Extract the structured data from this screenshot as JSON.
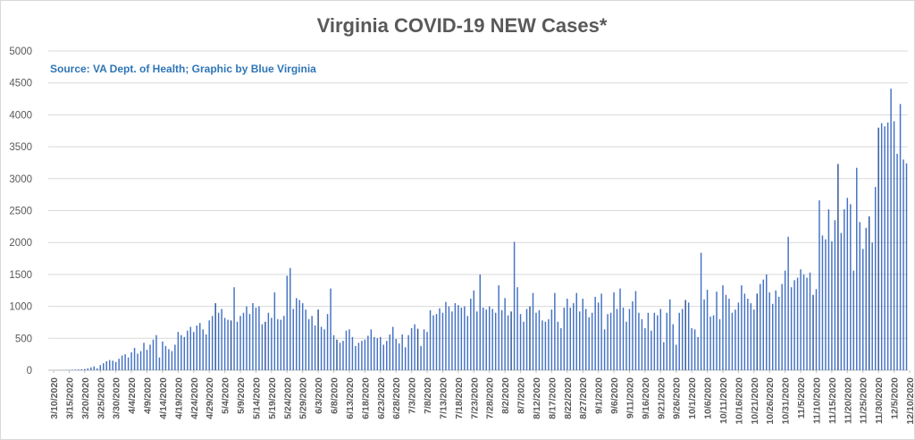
{
  "chart_data": {
    "type": "bar",
    "title": "Virginia COVID-19 NEW Cases*",
    "annotation": "Source: VA Dept. of Health; Graphic by Blue Virginia",
    "xlabel": "",
    "ylabel": "",
    "ylim": [
      0,
      5000
    ],
    "yticks": [
      0,
      500,
      1000,
      1500,
      2000,
      2500,
      3000,
      3500,
      4000,
      4500,
      5000
    ],
    "grid": true,
    "legend": "none",
    "colors": {
      "bar": "#4472c4",
      "bar_dark": "#2f5597",
      "grid": "#d9d9d9",
      "title": "#595959",
      "annotation": "#2e75b6"
    },
    "x_tick_labels": [
      "3/10/2020",
      "3/15/2020",
      "3/20/2020",
      "3/25/2020",
      "3/30/2020",
      "4/4/2020",
      "4/9/2020",
      "4/14/2020",
      "4/19/2020",
      "4/24/2020",
      "4/29/2020",
      "5/4/2020",
      "5/9/2020",
      "5/14/2020",
      "5/19/2020",
      "5/24/2020",
      "5/29/2020",
      "6/3/2020",
      "6/8/2020",
      "6/13/2020",
      "6/18/2020",
      "6/23/2020",
      "6/28/2020",
      "7/3/2020",
      "7/8/2020",
      "7/13/2020",
      "7/18/2020",
      "7/23/2020",
      "7/28/2020",
      "8/2/2020",
      "8/7/2020",
      "8/12/2020",
      "8/17/2020",
      "8/22/2020",
      "8/27/2020",
      "9/1/2020",
      "9/6/2020",
      "9/11/2020",
      "9/16/2020",
      "9/21/2020",
      "9/26/2020",
      "10/1/2020",
      "10/6/2020",
      "10/11/2020",
      "10/16/2020",
      "10/21/2020",
      "10/26/2020",
      "10/31/2020",
      "11/5/2020",
      "11/10/2020",
      "11/15/2020",
      "11/20/2020",
      "11/25/2020",
      "11/30/2020",
      "12/5/2020",
      "12/10/2020"
    ],
    "start_label": "3/10/2020",
    "values": [
      1,
      2,
      3,
      4,
      5,
      6,
      8,
      10,
      12,
      15,
      20,
      30,
      45,
      60,
      30,
      80,
      110,
      140,
      160,
      150,
      130,
      180,
      230,
      250,
      200,
      280,
      350,
      260,
      300,
      430,
      320,
      400,
      480,
      550,
      200,
      450,
      380,
      330,
      300,
      400,
      600,
      550,
      520,
      620,
      680,
      600,
      700,
      740,
      640,
      560,
      780,
      850,
      1050,
      900,
      960,
      820,
      790,
      780,
      1300,
      760,
      850,
      900,
      1000,
      880,
      1050,
      980,
      1000,
      720,
      760,
      900,
      820,
      1220,
      800,
      790,
      850,
      1480,
      1600,
      960,
      1130,
      1100,
      1050,
      950,
      800,
      850,
      700,
      950,
      680,
      640,
      880,
      1280,
      550,
      480,
      430,
      460,
      620,
      640,
      520,
      380,
      430,
      460,
      480,
      540,
      640,
      520,
      500,
      520,
      400,
      460,
      560,
      680,
      490,
      420,
      560,
      360,
      550,
      660,
      720,
      650,
      380,
      640,
      600,
      940,
      860,
      880,
      970,
      900,
      1070,
      1000,
      920,
      1050,
      1020,
      980,
      1000,
      850,
      1120,
      1250,
      920,
      1500,
      980,
      950,
      1000,
      960,
      900,
      1330,
      940,
      1130,
      860,
      920,
      2010,
      1300,
      880,
      760,
      960,
      1000,
      1210,
      900,
      940,
      780,
      760,
      800,
      950,
      1210,
      760,
      660,
      980,
      1120,
      980,
      1050,
      1210,
      920,
      1120,
      960,
      830,
      900,
      1150,
      1060,
      1200,
      640,
      880,
      900,
      1220,
      960,
      1280,
      980,
      760,
      960,
      1080,
      1240,
      900,
      800,
      660,
      900,
      620,
      900,
      860,
      960,
      440,
      900,
      1110,
      720,
      400,
      900,
      960,
      1100,
      1060,
      660,
      640,
      520,
      1840,
      1110,
      1260,
      840,
      860,
      1230,
      800,
      1330,
      1180,
      1120,
      900,
      950,
      1060,
      1330,
      1200,
      1120,
      1050,
      950,
      1200,
      1350,
      1420,
      1500,
      1220,
      1040,
      1250,
      1150,
      1350,
      1560,
      2090,
      1300,
      1410,
      1450,
      1580,
      1500,
      1450,
      1530,
      1180,
      1270,
      2660,
      2110,
      2050,
      2520,
      2020,
      2350,
      3230,
      2150,
      2520,
      2700,
      2600,
      1560,
      3170,
      2320,
      1900,
      2230,
      2410,
      2000,
      2870,
      3800,
      3870,
      3820,
      3880,
      4410,
      3900,
      3390,
      4170,
      3300,
      3240
    ],
    "dark_bar_indices": [
      52,
      57,
      68,
      85,
      91,
      117,
      147,
      153,
      203,
      226,
      244,
      252,
      262,
      265,
      278,
      287
    ]
  }
}
